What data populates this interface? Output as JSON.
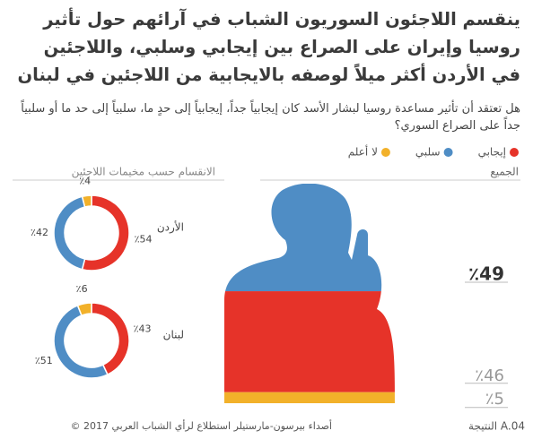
{
  "title": "ينقسم اللاجئون السوريون الشباب في آرائهم حول تأثير روسيا وإيران على الصراع بين إيجابي وسلبي، واللاجئين في الأردن أكثر ميلاً لوصفه بالايجابية من اللاجئين في لبنان",
  "question": "هل تعتقد أن تأثير مساعدة روسيا لبشار الأسد كان إيجابياً جداً، إيجابياً إلى حدٍ ما، سلبياً إلى حد ما أو سلبياً جداً على الصراع السوري؟",
  "source": "© أصداء بيرسون-مارستيلر استطلاع لرأي الشباب العربي 2017",
  "finding": "النتيجة A.04",
  "chart_data": [
    {
      "type": "figure",
      "subtitle": "الجميع",
      "series": [
        {
          "name": "إيجابي",
          "color": "#e63329",
          "values": [
            46
          ],
          "value_labels": [
            "٪46"
          ]
        },
        {
          "name": "سلبي",
          "color": "#4f8dc5",
          "values": [
            49
          ],
          "value_labels": [
            "٪49"
          ]
        },
        {
          "name": "لا أعلم",
          "color": "#f2b12a",
          "values": [
            5
          ],
          "value_labels": [
            "٪5"
          ]
        }
      ]
    },
    {
      "type": "donut",
      "subtitle": "الانقسام حسب مخيمات اللاجئين",
      "categories": [
        "الأردن",
        "لبنان"
      ],
      "series": [
        {
          "color": "#e63329",
          "values": [
            54,
            43
          ],
          "value_labels": [
            "٪54",
            "٪43"
          ]
        },
        {
          "color": "#4f8dc5",
          "values": [
            42,
            51
          ],
          "value_labels": [
            "٪42",
            "٪51"
          ]
        },
        {
          "color": "#f2b12a",
          "values": [
            4,
            6
          ],
          "value_labels": [
            "٪4",
            "٪6"
          ]
        }
      ]
    }
  ]
}
